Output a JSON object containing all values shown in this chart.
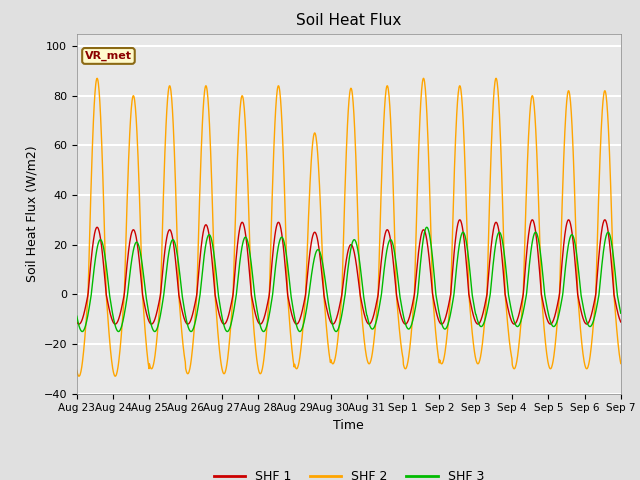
{
  "title": "Soil Heat Flux",
  "ylabel": "Soil Heat Flux (W/m2)",
  "xlabel": "Time",
  "ylim": [
    -40,
    105
  ],
  "yticks": [
    -40,
    -20,
    0,
    20,
    40,
    60,
    80,
    100
  ],
  "annotation_text": "VR_met",
  "annotation_color": "#8B0000",
  "annotation_bg": "#FFFACD",
  "annotation_border": "#8B6914",
  "line_colors": {
    "SHF 1": "#cc0000",
    "SHF 2": "#ffa500",
    "SHF 3": "#00bb00"
  },
  "plot_bg": "#e8e8e8",
  "fig_bg": "#e0e0e0",
  "grid_color": "#ffffff",
  "n_days": 15,
  "x_tick_labels": [
    "Aug 23",
    "Aug 24",
    "Aug 25",
    "Aug 26",
    "Aug 27",
    "Aug 28",
    "Aug 29",
    "Aug 30",
    "Aug 31",
    "Sep 1",
    "Sep 2",
    "Sep 3",
    "Sep 4",
    "Sep 5",
    "Sep 6",
    "Sep 7"
  ],
  "legend_entries": [
    "SHF 1",
    "SHF 2",
    "SHF 3"
  ],
  "day_peaks_shf1": [
    27,
    26,
    26,
    28,
    29,
    29,
    25,
    20,
    26,
    26,
    30,
    29,
    30,
    30,
    30
  ],
  "day_troughs_shf1": [
    12,
    12,
    12,
    12,
    12,
    12,
    12,
    12,
    12,
    12,
    12,
    12,
    12,
    12,
    12
  ],
  "day_peaks_shf2": [
    87,
    80,
    84,
    84,
    80,
    84,
    65,
    83,
    84,
    87,
    84,
    87,
    80,
    82,
    82
  ],
  "day_troughs_shf2": [
    33,
    33,
    30,
    32,
    32,
    32,
    30,
    28,
    28,
    30,
    28,
    28,
    30,
    30,
    30
  ],
  "day_peaks_shf3": [
    22,
    21,
    22,
    24,
    23,
    23,
    18,
    22,
    22,
    27,
    25,
    25,
    25,
    24,
    25
  ],
  "day_troughs_shf3": [
    15,
    15,
    15,
    15,
    15,
    15,
    15,
    15,
    14,
    14,
    14,
    13,
    13,
    13,
    13
  ]
}
